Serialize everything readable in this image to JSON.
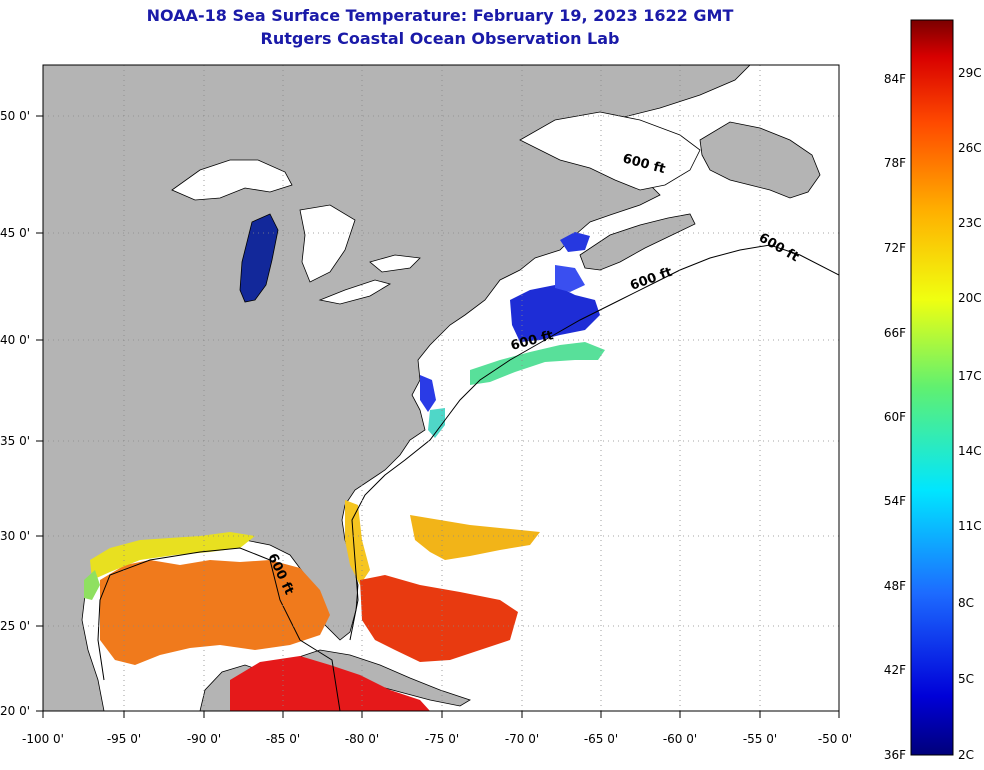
{
  "title": "NOAA-18 Sea Surface Temperature:  February 19, 2023 1622 GMT",
  "subtitle": "Rutgers Coastal Ocean Observation Lab",
  "lat_labels": [
    "50 0'",
    "45 0'",
    "40 0'",
    "35 0'",
    "30 0'",
    "25 0'",
    "20 0'"
  ],
  "lon_labels": [
    "-100 0'",
    "-95 0'",
    "-90 0'",
    "-85 0'",
    "-80 0'",
    "-75 0'",
    "-70 0'",
    "-65 0'",
    "-60 0'",
    "-55 0'",
    "-50 0'"
  ],
  "isobath_label": "600 ft",
  "colorbar": {
    "f_labels": [
      "84F",
      "78F",
      "72F",
      "66F",
      "60F",
      "54F",
      "48F",
      "42F",
      "36F"
    ],
    "c_labels": [
      "29C",
      "26C",
      "23C",
      "20C",
      "17C",
      "14C",
      "11C",
      "8C",
      "5C",
      "2C"
    ]
  },
  "colors": {
    "land": "#b4b4b4",
    "ocean": "#ffffff",
    "title": "#1a1aa8",
    "cold": "#1e2dd6",
    "warm_gulf": "#f07a1c",
    "hot_carib": "#e5191a"
  }
}
